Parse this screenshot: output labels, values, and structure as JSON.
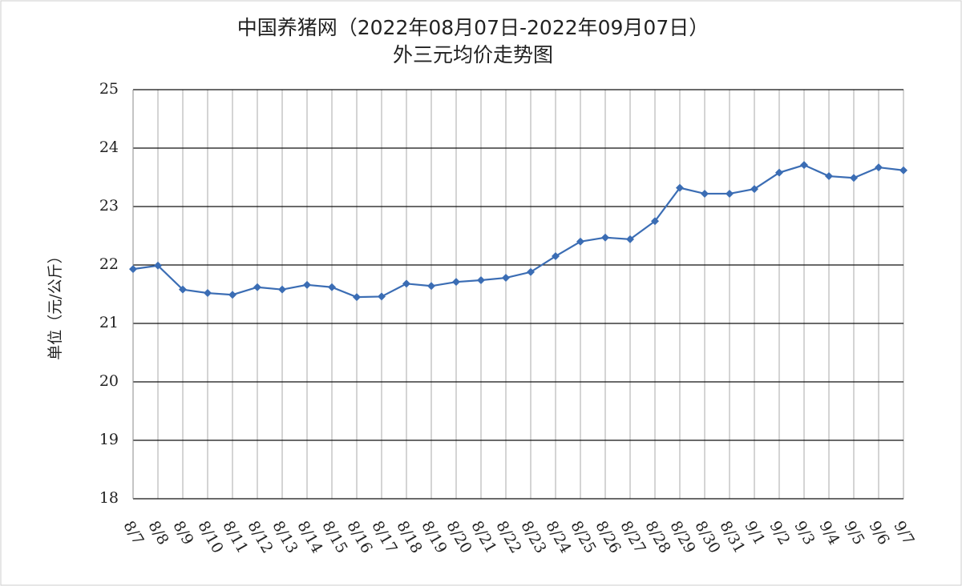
{
  "chart_data": {
    "type": "line",
    "title": "中国养猪网（2022年08月07日-2022年09月07日）",
    "subtitle": "外三元均价走势图",
    "y_label": "单位（元/公斤）",
    "categories": [
      "8/7",
      "8/8",
      "8/9",
      "8/10",
      "8/11",
      "8/12",
      "8/13",
      "8/14",
      "8/15",
      "8/16",
      "8/17",
      "8/18",
      "8/19",
      "8/20",
      "8/21",
      "8/22",
      "8/23",
      "8/24",
      "8/25",
      "8/26",
      "8/27",
      "8/28",
      "8/29",
      "8/30",
      "8/31",
      "9/1",
      "9/2",
      "9/3",
      "9/4",
      "9/5",
      "9/6",
      "9/7"
    ],
    "series": [
      {
        "name": "外三元均价",
        "color": "#3b6db4",
        "values": [
          21.93,
          21.99,
          21.58,
          21.52,
          21.49,
          21.62,
          21.58,
          21.66,
          21.62,
          21.45,
          21.46,
          21.68,
          21.64,
          21.71,
          21.74,
          21.78,
          21.88,
          22.15,
          22.4,
          22.47,
          22.44,
          22.75,
          23.32,
          23.22,
          23.22,
          23.3,
          23.58,
          23.71,
          23.52,
          23.49,
          23.67,
          23.62
        ]
      }
    ],
    "ylim": [
      18,
      25
    ],
    "yticks": [
      18,
      19,
      20,
      21,
      22,
      23,
      24,
      25
    ],
    "grid": true
  }
}
